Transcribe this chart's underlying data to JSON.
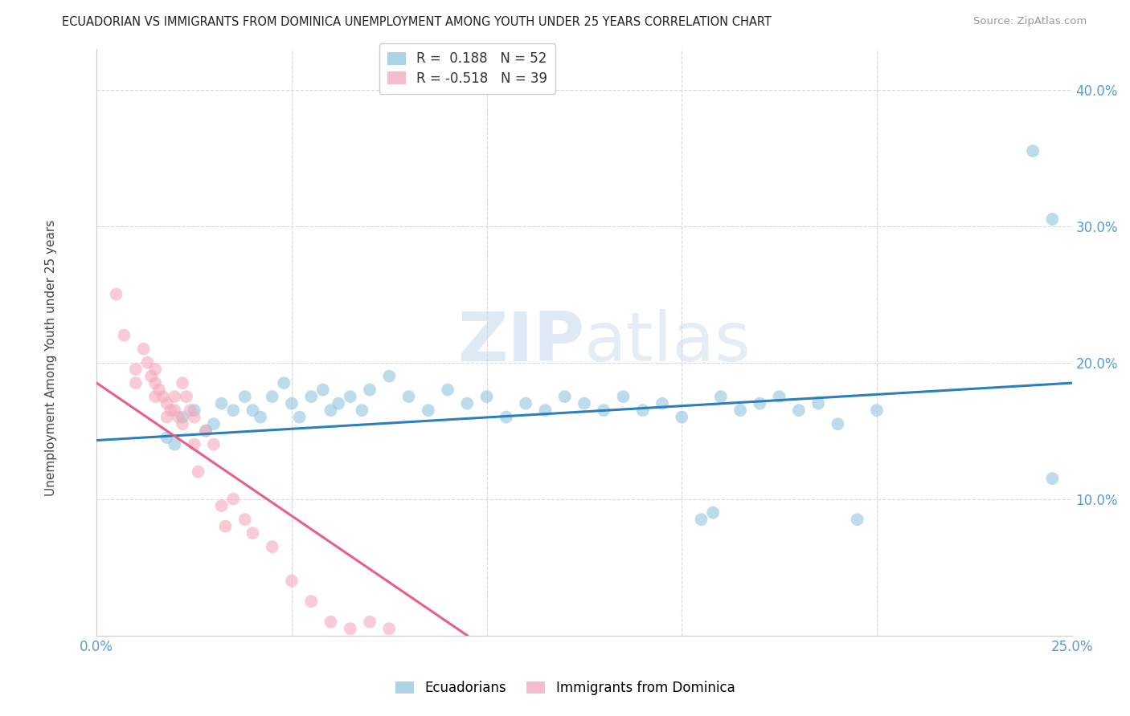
{
  "title": "ECUADORIAN VS IMMIGRANTS FROM DOMINICA UNEMPLOYMENT AMONG YOUTH UNDER 25 YEARS CORRELATION CHART",
  "source": "Source: ZipAtlas.com",
  "ylabel": "Unemployment Among Youth under 25 years",
  "ytick_vals": [
    0.1,
    0.2,
    0.3,
    0.4
  ],
  "xlim": [
    0.0,
    0.25
  ],
  "ylim": [
    0.0,
    0.43
  ],
  "legend_R1": "0.188",
  "legend_N1": "52",
  "legend_R2": "-0.518",
  "legend_N2": "39",
  "legend_label1": "Ecuadorians",
  "legend_label2": "Immigrants from Dominica",
  "blue_scatter": [
    [
      0.018,
      0.145
    ],
    [
      0.02,
      0.14
    ],
    [
      0.022,
      0.16
    ],
    [
      0.025,
      0.165
    ],
    [
      0.028,
      0.15
    ],
    [
      0.03,
      0.155
    ],
    [
      0.032,
      0.17
    ],
    [
      0.035,
      0.165
    ],
    [
      0.038,
      0.175
    ],
    [
      0.04,
      0.165
    ],
    [
      0.042,
      0.16
    ],
    [
      0.045,
      0.175
    ],
    [
      0.048,
      0.185
    ],
    [
      0.05,
      0.17
    ],
    [
      0.052,
      0.16
    ],
    [
      0.055,
      0.175
    ],
    [
      0.058,
      0.18
    ],
    [
      0.06,
      0.165
    ],
    [
      0.062,
      0.17
    ],
    [
      0.065,
      0.175
    ],
    [
      0.068,
      0.165
    ],
    [
      0.07,
      0.18
    ],
    [
      0.075,
      0.19
    ],
    [
      0.08,
      0.175
    ],
    [
      0.085,
      0.165
    ],
    [
      0.09,
      0.18
    ],
    [
      0.095,
      0.17
    ],
    [
      0.1,
      0.175
    ],
    [
      0.105,
      0.16
    ],
    [
      0.11,
      0.17
    ],
    [
      0.115,
      0.165
    ],
    [
      0.12,
      0.175
    ],
    [
      0.125,
      0.17
    ],
    [
      0.13,
      0.165
    ],
    [
      0.135,
      0.175
    ],
    [
      0.14,
      0.165
    ],
    [
      0.145,
      0.17
    ],
    [
      0.15,
      0.16
    ],
    [
      0.155,
      0.085
    ],
    [
      0.158,
      0.09
    ],
    [
      0.16,
      0.175
    ],
    [
      0.165,
      0.165
    ],
    [
      0.17,
      0.17
    ],
    [
      0.175,
      0.175
    ],
    [
      0.18,
      0.165
    ],
    [
      0.185,
      0.17
    ],
    [
      0.19,
      0.155
    ],
    [
      0.195,
      0.085
    ],
    [
      0.2,
      0.165
    ],
    [
      0.24,
      0.355
    ],
    [
      0.245,
      0.305
    ],
    [
      0.245,
      0.115
    ]
  ],
  "pink_scatter": [
    [
      0.005,
      0.25
    ],
    [
      0.007,
      0.22
    ],
    [
      0.01,
      0.195
    ],
    [
      0.01,
      0.185
    ],
    [
      0.012,
      0.21
    ],
    [
      0.013,
      0.2
    ],
    [
      0.014,
      0.19
    ],
    [
      0.015,
      0.195
    ],
    [
      0.015,
      0.185
    ],
    [
      0.015,
      0.175
    ],
    [
      0.016,
      0.18
    ],
    [
      0.017,
      0.175
    ],
    [
      0.018,
      0.17
    ],
    [
      0.018,
      0.16
    ],
    [
      0.019,
      0.165
    ],
    [
      0.02,
      0.175
    ],
    [
      0.02,
      0.165
    ],
    [
      0.021,
      0.16
    ],
    [
      0.022,
      0.155
    ],
    [
      0.022,
      0.185
    ],
    [
      0.023,
      0.175
    ],
    [
      0.024,
      0.165
    ],
    [
      0.025,
      0.16
    ],
    [
      0.025,
      0.14
    ],
    [
      0.026,
      0.12
    ],
    [
      0.028,
      0.15
    ],
    [
      0.03,
      0.14
    ],
    [
      0.032,
      0.095
    ],
    [
      0.033,
      0.08
    ],
    [
      0.035,
      0.1
    ],
    [
      0.038,
      0.085
    ],
    [
      0.04,
      0.075
    ],
    [
      0.045,
      0.065
    ],
    [
      0.05,
      0.04
    ],
    [
      0.055,
      0.025
    ],
    [
      0.06,
      0.01
    ],
    [
      0.065,
      0.005
    ],
    [
      0.07,
      0.01
    ],
    [
      0.075,
      0.005
    ]
  ],
  "blue_line_x": [
    0.0,
    0.25
  ],
  "blue_line_y": [
    0.143,
    0.185
  ],
  "pink_line_x": [
    0.0,
    0.095
  ],
  "pink_line_y": [
    0.185,
    0.0
  ],
  "blue_color": "#92c5de",
  "pink_color": "#f4a9bb",
  "blue_line_color": "#2c7fb8",
  "pink_line_color": "#e8608a",
  "watermark_zip": "ZIP",
  "watermark_atlas": "atlas",
  "background_color": "#ffffff",
  "grid_color": "#d8d8d8",
  "ytick_color": "#5b9bd5",
  "xtick_color": "#5b9bd5"
}
